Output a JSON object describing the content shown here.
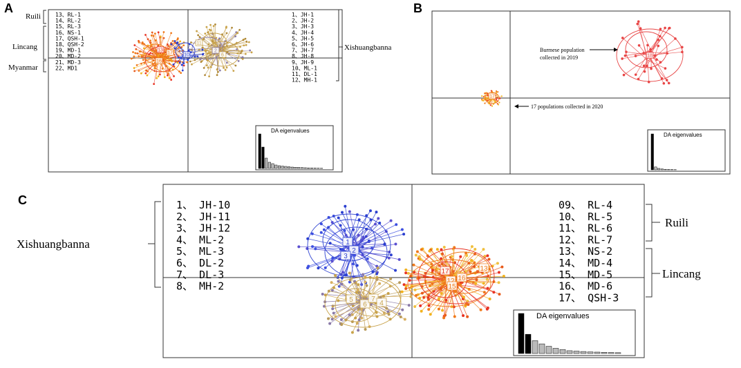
{
  "panels": {
    "A": {
      "letter": "A",
      "left_list": [
        "13、RL-1",
        "14、RL-2",
        "15、RL-3",
        "16、NS-1",
        "17、QSH-1",
        "18、QSH-2",
        "19、MD-1",
        "20、MD-2",
        "21、MD-3",
        "22、MD1"
      ],
      "right_list": [
        "1、JH-1",
        "2、JH-2",
        "3、JH-3",
        "4、JH-4",
        "5、JH-5",
        "6、JH-6",
        "7、JH-7",
        "8、JH-8",
        "9、JH-9",
        "10、ML-1",
        "11、DL-1",
        "12、MH-1"
      ],
      "groups_left": [
        "Ruili",
        "Lincang",
        "Myanmar"
      ],
      "group_right": "Xishuangbanna",
      "eigen_label": "DA eigenvalues",
      "cluster_labels": [
        "13",
        "17",
        "16",
        "10",
        "11",
        "2",
        "6"
      ]
    },
    "B": {
      "letter": "B",
      "annotation_1": "Burmese population",
      "annotation_1b": "collected in 2019",
      "annotation_2": "17 populations collected in 2020",
      "eigen_label": "DA eigenvalues",
      "cluster_labels": [
        "18",
        "17"
      ]
    },
    "C": {
      "letter": "C",
      "left_list": [
        "1、 JH-10",
        "2、 JH-11",
        "3、 JH-12",
        "4、 ML-2",
        "5、 ML-3",
        "6、 DL-2",
        "7、 DL-3",
        "8、 MH-2"
      ],
      "right_list": [
        "09、 RL-4",
        "10、 RL-5",
        "11、 RL-6",
        "12、 RL-7",
        "13、 NS-2",
        "14、 MD-4",
        "15、 MD-5",
        "16、 MD-6",
        "17、 QSH-3"
      ],
      "group_left": "Xishuangbanna",
      "group_right_1": "Ruili",
      "group_right_2": "Lincang",
      "eigen_label": "DA eigenvalues",
      "cluster_labels": [
        "1",
        "2",
        "3",
        "5",
        "6",
        "7",
        "4",
        "17",
        "13",
        "16",
        "12",
        "15"
      ]
    }
  },
  "colors": {
    "blue": "#2b3fd0",
    "orange": "#f07a1a",
    "red": "#e83323",
    "gold": "#c8a24a",
    "yellow": "#f2b21e",
    "purple": "#8a7aa8",
    "redB": "#e84545"
  },
  "chart_data": [
    {
      "type": "scatter",
      "title": "",
      "clusters": [
        {
          "name": "Ruili/Lincang/Myanmar",
          "color": "orange"
        },
        {
          "name": "Xishuangbanna",
          "color": "gold"
        }
      ],
      "eigenvalues": [
        100,
        62,
        30,
        18,
        14,
        10,
        8,
        7,
        6,
        5,
        4,
        3.5,
        3,
        2.5,
        2,
        1.5,
        1.2,
        1,
        0.8,
        0.6
      ]
    },
    {
      "type": "scatter",
      "clusters": [
        {
          "name": "Burmese population collected in 2019",
          "color": "redB"
        },
        {
          "name": "17 populations collected in 2020",
          "color": "orange"
        }
      ],
      "eigenvalues": [
        100,
        8,
        4,
        2.5,
        1.5,
        1,
        0.8,
        0.6
      ]
    },
    {
      "type": "scatter",
      "clusters": [
        {
          "name": "Xishuangbanna (blue)",
          "color": "blue"
        },
        {
          "name": "Xishuangbanna (gold)",
          "color": "gold"
        },
        {
          "name": "Ruili/Lincang",
          "color": "orange"
        }
      ],
      "eigenvalues": [
        100,
        48,
        32,
        24,
        18,
        13,
        10,
        7,
        6,
        5,
        4,
        3.5,
        3,
        2.5,
        2
      ]
    }
  ]
}
